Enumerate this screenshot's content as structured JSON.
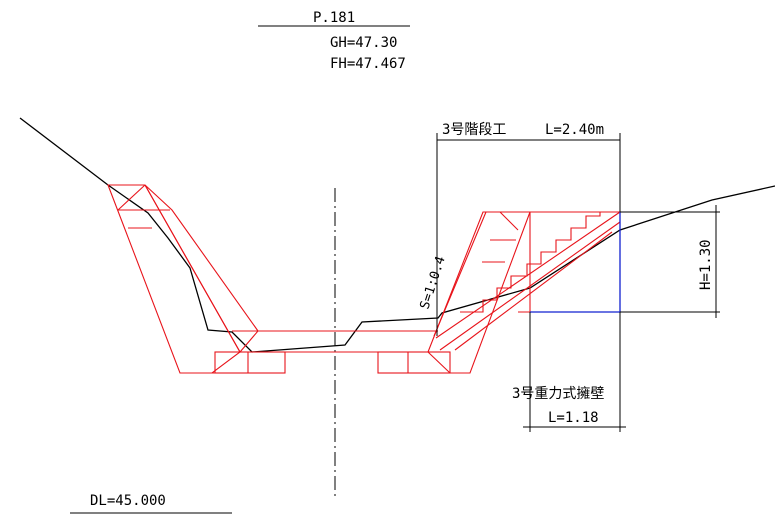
{
  "header": {
    "station": "P.181",
    "ground_height": "GH=47.30",
    "formation_height": "FH=47.467"
  },
  "stair": {
    "title": "3号階段工",
    "length": "L=2.40m"
  },
  "slope_label": "S=1:0.4",
  "height_label": "H=1.30",
  "wall": {
    "title": "3号重力式擁壁",
    "length": "L=1.18"
  },
  "datum": "DL=45.000",
  "colors": {
    "structure": "#e8141b",
    "ground": "#000000",
    "wall_outline": "#1020d0"
  }
}
